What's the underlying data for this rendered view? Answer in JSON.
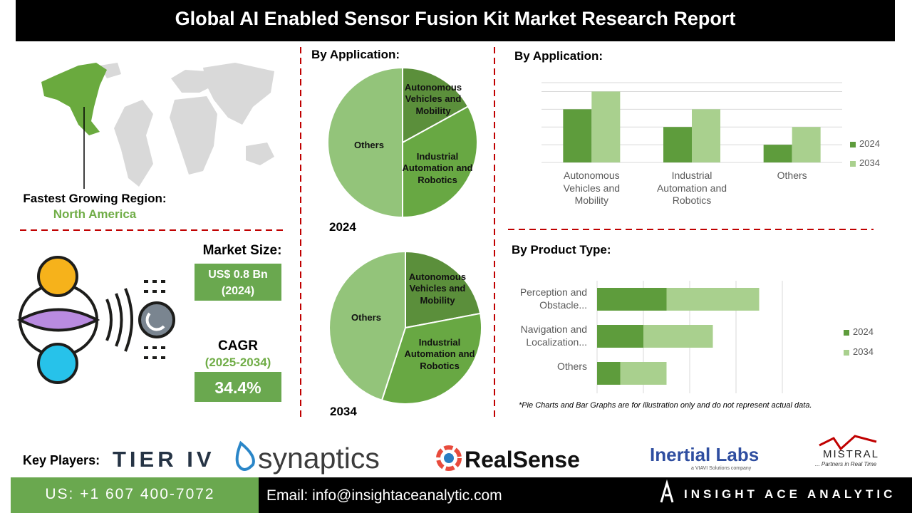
{
  "header": {
    "title": "Global AI Enabled Sensor Fusion Kit Market Research Report"
  },
  "region": {
    "label": "Fastest Growing Region:",
    "value": "North America"
  },
  "market_size": {
    "label": "Market Size:",
    "value": "US$ 0.8 Bn",
    "year": "(2024)"
  },
  "cagr": {
    "label": "CAGR",
    "period": "(2025-2034)",
    "value": "34.4%"
  },
  "chart_data": [
    {
      "type": "pie",
      "title": "By Application:",
      "subtitle": "2024",
      "categories": [
        "Autonomous Vehicles and Mobility",
        "Industrial Automation and Robotics",
        "Others"
      ],
      "values": [
        17,
        33,
        50
      ],
      "colors": [
        "#5b8f3b",
        "#68a843",
        "#93c47a"
      ]
    },
    {
      "type": "pie",
      "subtitle": "2034",
      "categories": [
        "Autonomous Vehicles and Mobility",
        "Industrial Automation and Robotics",
        "Others"
      ],
      "values": [
        22,
        33,
        45
      ],
      "colors": [
        "#5b8f3b",
        "#68a843",
        "#93c47a"
      ]
    },
    {
      "type": "bar",
      "title": "By Application:",
      "categories": [
        "Autonomous Vehicles and Mobility",
        "Industrial Automation and Robotics",
        "Others"
      ],
      "series": [
        {
          "name": "2024",
          "color": "#5e9c3c",
          "values": [
            3,
            2,
            1
          ]
        },
        {
          "name": "2034",
          "color": "#a9d08e",
          "values": [
            4,
            3,
            2
          ]
        }
      ],
      "ylim": [
        0,
        4.5
      ],
      "yticks": [
        0,
        1,
        2,
        3,
        4
      ],
      "grid": true,
      "legend": "right"
    },
    {
      "type": "stacked-barh",
      "title": "By Product Type:",
      "categories": [
        "Perception and Obstacle...",
        "Navigation and Localization...",
        "Others"
      ],
      "series": [
        {
          "name": "2024",
          "color": "#5e9c3c",
          "values": [
            3,
            2,
            1
          ]
        },
        {
          "name": "2034",
          "color": "#a9d08e",
          "values": [
            4,
            3,
            2
          ]
        }
      ],
      "xlim": [
        0,
        8
      ],
      "xticks": [
        0,
        2,
        4,
        6,
        8
      ],
      "grid": true,
      "legend": "right"
    }
  ],
  "note": "*Pie Charts and Bar Graphs are for illustration only and do not represent actual data.",
  "key_players": {
    "label": "Key Players:",
    "names": [
      "TIER IV",
      "synaptics",
      "RealSense",
      "Inertial Labs",
      "MISTRAL"
    ],
    "taglines": [
      "a VIAVI Solutions company",
      "... Partners in Real Time"
    ]
  },
  "footer": {
    "phone": "US: +1 607 400-7072",
    "email": "Email: info@insightaceanalytic.com",
    "brand": "INSIGHT ACE ANALYTIC"
  }
}
